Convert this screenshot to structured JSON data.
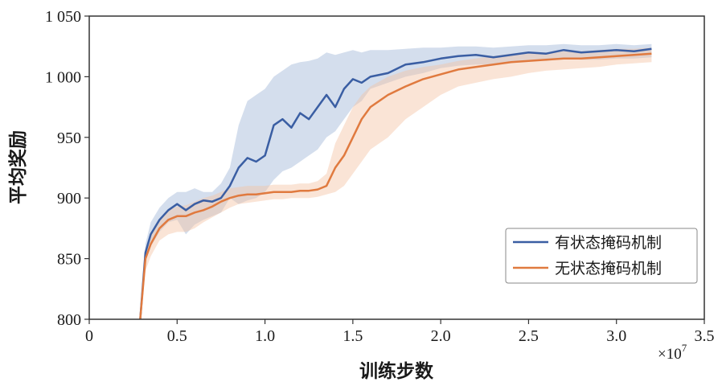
{
  "chart_data": {
    "type": "line",
    "xlabel": "训练步数",
    "ylabel": "平均奖励",
    "x_multiplier_label": "×10",
    "x_multiplier_exp": "7",
    "xlim": [
      0,
      3.5
    ],
    "ylim": [
      800,
      1050
    ],
    "xticks": [
      0,
      0.5,
      1.0,
      1.5,
      2.0,
      2.5,
      3.0,
      3.5
    ],
    "xtick_labels": [
      "0",
      "0.5",
      "1.0",
      "1.5",
      "2.0",
      "2.5",
      "3.0",
      "3.5"
    ],
    "yticks": [
      800,
      850,
      900,
      950,
      1000,
      1050
    ],
    "ytick_labels": [
      "800",
      "850",
      "900",
      "950",
      "1 000",
      "1 050"
    ],
    "legend_position": "lower-right",
    "grid": false,
    "series": [
      {
        "name": "有状态掩码机制",
        "color": "#3a5ea3",
        "band_color": "#9fb6d8",
        "x": [
          0.29,
          0.32,
          0.35,
          0.4,
          0.45,
          0.5,
          0.55,
          0.6,
          0.65,
          0.7,
          0.75,
          0.8,
          0.85,
          0.9,
          0.95,
          1.0,
          1.05,
          1.1,
          1.15,
          1.2,
          1.25,
          1.3,
          1.35,
          1.4,
          1.45,
          1.5,
          1.55,
          1.6,
          1.7,
          1.8,
          1.9,
          2.0,
          2.1,
          2.2,
          2.3,
          2.4,
          2.5,
          2.6,
          2.7,
          2.8,
          2.9,
          3.0,
          3.1,
          3.2
        ],
        "y": [
          800,
          855,
          870,
          882,
          890,
          895,
          890,
          895,
          898,
          897,
          900,
          910,
          925,
          933,
          930,
          935,
          960,
          965,
          958,
          970,
          965,
          975,
          985,
          975,
          990,
          998,
          995,
          1000,
          1003,
          1010,
          1012,
          1015,
          1017,
          1018,
          1016,
          1018,
          1020,
          1019,
          1022,
          1020,
          1021,
          1022,
          1021,
          1023
        ],
        "lower": [
          800,
          848,
          860,
          872,
          880,
          882,
          870,
          878,
          882,
          885,
          888,
          900,
          895,
          898,
          900,
          905,
          915,
          922,
          925,
          930,
          935,
          940,
          950,
          955,
          965,
          975,
          980,
          990,
          995,
          1000,
          1003,
          1007,
          1009,
          1010,
          1010,
          1012,
          1014,
          1013,
          1015,
          1014,
          1014,
          1015,
          1015,
          1016
        ],
        "upper": [
          800,
          862,
          880,
          892,
          900,
          905,
          905,
          908,
          905,
          905,
          912,
          925,
          960,
          980,
          985,
          990,
          1000,
          1005,
          1010,
          1012,
          1013,
          1015,
          1020,
          1018,
          1020,
          1022,
          1020,
          1022,
          1022,
          1023,
          1024,
          1024,
          1025,
          1025,
          1024,
          1025,
          1026,
          1026,
          1027,
          1026,
          1026,
          1027,
          1026,
          1027
        ]
      },
      {
        "name": "无状态掩码机制",
        "color": "#e07a3f",
        "band_color": "#f3c4a4",
        "x": [
          0.29,
          0.32,
          0.35,
          0.4,
          0.45,
          0.5,
          0.55,
          0.6,
          0.65,
          0.7,
          0.75,
          0.8,
          0.85,
          0.9,
          0.95,
          1.0,
          1.05,
          1.1,
          1.15,
          1.2,
          1.25,
          1.3,
          1.35,
          1.4,
          1.45,
          1.5,
          1.55,
          1.6,
          1.7,
          1.8,
          1.9,
          2.0,
          2.1,
          2.2,
          2.3,
          2.4,
          2.5,
          2.6,
          2.7,
          2.8,
          2.9,
          3.0,
          3.1,
          3.2
        ],
        "y": [
          800,
          850,
          862,
          875,
          882,
          885,
          885,
          888,
          890,
          893,
          897,
          900,
          902,
          903,
          903,
          904,
          905,
          905,
          905,
          906,
          906,
          907,
          910,
          925,
          935,
          950,
          965,
          975,
          985,
          992,
          998,
          1002,
          1006,
          1008,
          1010,
          1012,
          1013,
          1014,
          1015,
          1015,
          1016,
          1017,
          1018,
          1019
        ],
        "lower": [
          800,
          840,
          852,
          865,
          870,
          872,
          872,
          875,
          880,
          884,
          888,
          892,
          895,
          896,
          897,
          898,
          899,
          899,
          900,
          900,
          900,
          901,
          903,
          905,
          910,
          920,
          930,
          940,
          950,
          965,
          975,
          985,
          992,
          995,
          998,
          1000,
          1003,
          1005,
          1006,
          1007,
          1008,
          1010,
          1011,
          1012
        ],
        "upper": [
          800,
          858,
          870,
          882,
          890,
          893,
          894,
          897,
          900,
          902,
          905,
          908,
          909,
          910,
          910,
          910,
          911,
          911,
          911,
          912,
          912,
          914,
          920,
          945,
          960,
          975,
          985,
          992,
          1000,
          1005,
          1008,
          1010,
          1013,
          1015,
          1017,
          1019,
          1020,
          1020,
          1021,
          1021,
          1022,
          1023,
          1023,
          1024
        ]
      }
    ]
  }
}
